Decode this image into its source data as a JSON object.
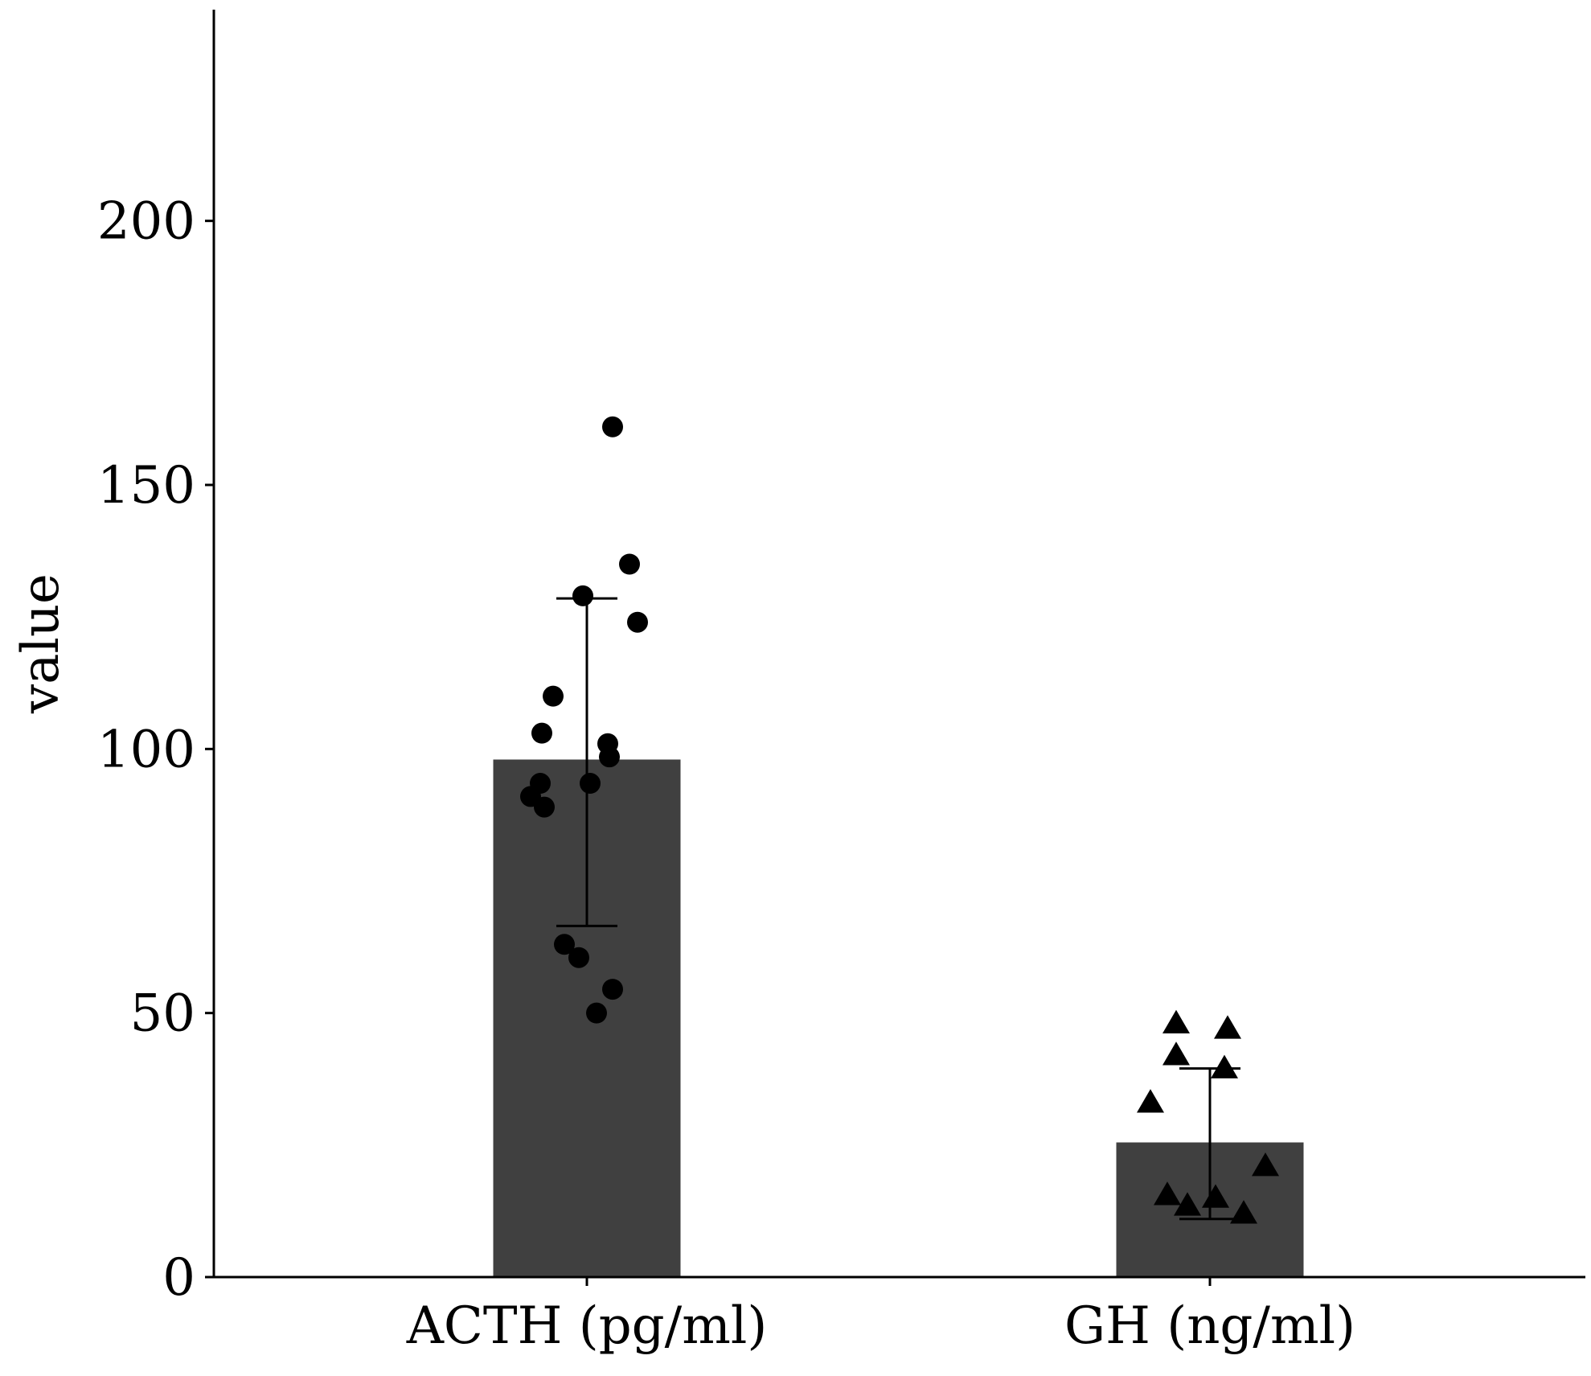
{
  "chart_data": {
    "type": "bar",
    "title": "",
    "xlabel": "",
    "ylabel": "value",
    "ylim": [
      0,
      240
    ],
    "yticks": [
      0,
      50,
      100,
      150,
      200
    ],
    "categories": [
      "ACTH (pg/ml)",
      "GH (ng/ml)"
    ],
    "series": [
      {
        "name": "mean",
        "values": [
          98,
          25.5
        ],
        "color": "#404040"
      }
    ],
    "error_bars": [
      {
        "category": "ACTH (pg/ml)",
        "low": 66.5,
        "high": 128.5
      },
      {
        "category": "GH (ng/ml)",
        "low": 11,
        "high": 39.5
      }
    ],
    "points": [
      {
        "category": "ACTH (pg/ml)",
        "marker": "circle",
        "values": [
          161,
          135,
          129,
          124,
          110,
          103,
          101,
          98.5,
          93.5,
          93.5,
          91,
          89,
          63,
          60.5,
          54.5,
          50
        ]
      },
      {
        "category": "GH (ng/ml)",
        "marker": "triangle",
        "values": [
          48,
          47,
          42,
          39.5,
          33,
          21,
          15.5,
          15,
          13.5,
          12
        ]
      }
    ]
  }
}
